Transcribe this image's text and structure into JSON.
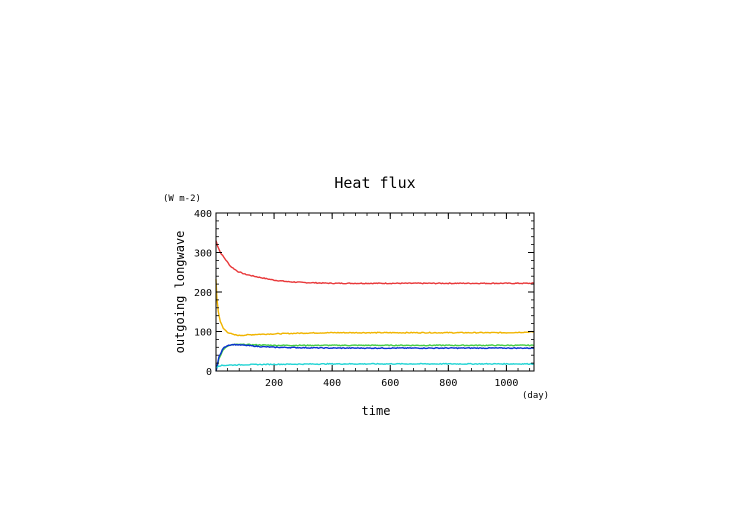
{
  "chart_data": {
    "type": "line",
    "title": "Heat flux",
    "xlabel": "time",
    "ylabel": "outgoing longwave",
    "x_unit": "(day)",
    "y_unit": "(W m-2)",
    "xlim": [
      0,
      1095
    ],
    "ylim": [
      0,
      400
    ],
    "xticks": [
      200,
      400,
      600,
      800,
      1000
    ],
    "yticks": [
      0,
      100,
      200,
      300,
      400
    ],
    "grid": false,
    "series": [
      {
        "color": "#e8383a",
        "x": [
          0,
          5,
          15,
          30,
          50,
          75,
          100,
          150,
          200,
          250,
          300,
          400,
          500,
          600,
          700,
          800,
          900,
          1000,
          1095
        ],
        "y": [
          330,
          318,
          300,
          285,
          265,
          252,
          245,
          237,
          230,
          226,
          224,
          222,
          222,
          222,
          222,
          222,
          222,
          222,
          222
        ]
      },
      {
        "color": "#f0b400",
        "x": [
          0,
          3,
          8,
          15,
          25,
          40,
          60,
          80,
          100,
          150,
          200,
          300,
          400,
          500,
          600,
          700,
          800,
          900,
          1000,
          1095
        ],
        "y": [
          232,
          185,
          150,
          125,
          108,
          98,
          92,
          90,
          91,
          93,
          94,
          96,
          97,
          97,
          97,
          97,
          97,
          97,
          97,
          99
        ]
      },
      {
        "color": "#44cc44",
        "x": [
          0,
          10,
          25,
          40,
          60,
          80,
          100,
          150,
          200,
          300,
          400,
          600,
          800,
          1000,
          1095
        ],
        "y": [
          0,
          30,
          55,
          63,
          67,
          67,
          67,
          66,
          65,
          65,
          65,
          65,
          65,
          65,
          65
        ]
      },
      {
        "color": "#0a2fd0",
        "x": [
          0,
          10,
          25,
          40,
          60,
          80,
          100,
          150,
          200,
          300,
          400,
          600,
          800,
          1000,
          1095
        ],
        "y": [
          0,
          35,
          58,
          65,
          67,
          66,
          65,
          62,
          60,
          59,
          58,
          58,
          58,
          58,
          58
        ]
      },
      {
        "color": "#22d4d4",
        "x": [
          0,
          8,
          20,
          50,
          100,
          200,
          400,
          600,
          800,
          1000,
          1095
        ],
        "y": [
          8,
          13,
          14,
          15,
          16,
          17,
          18,
          18,
          18,
          18,
          18
        ]
      }
    ]
  }
}
